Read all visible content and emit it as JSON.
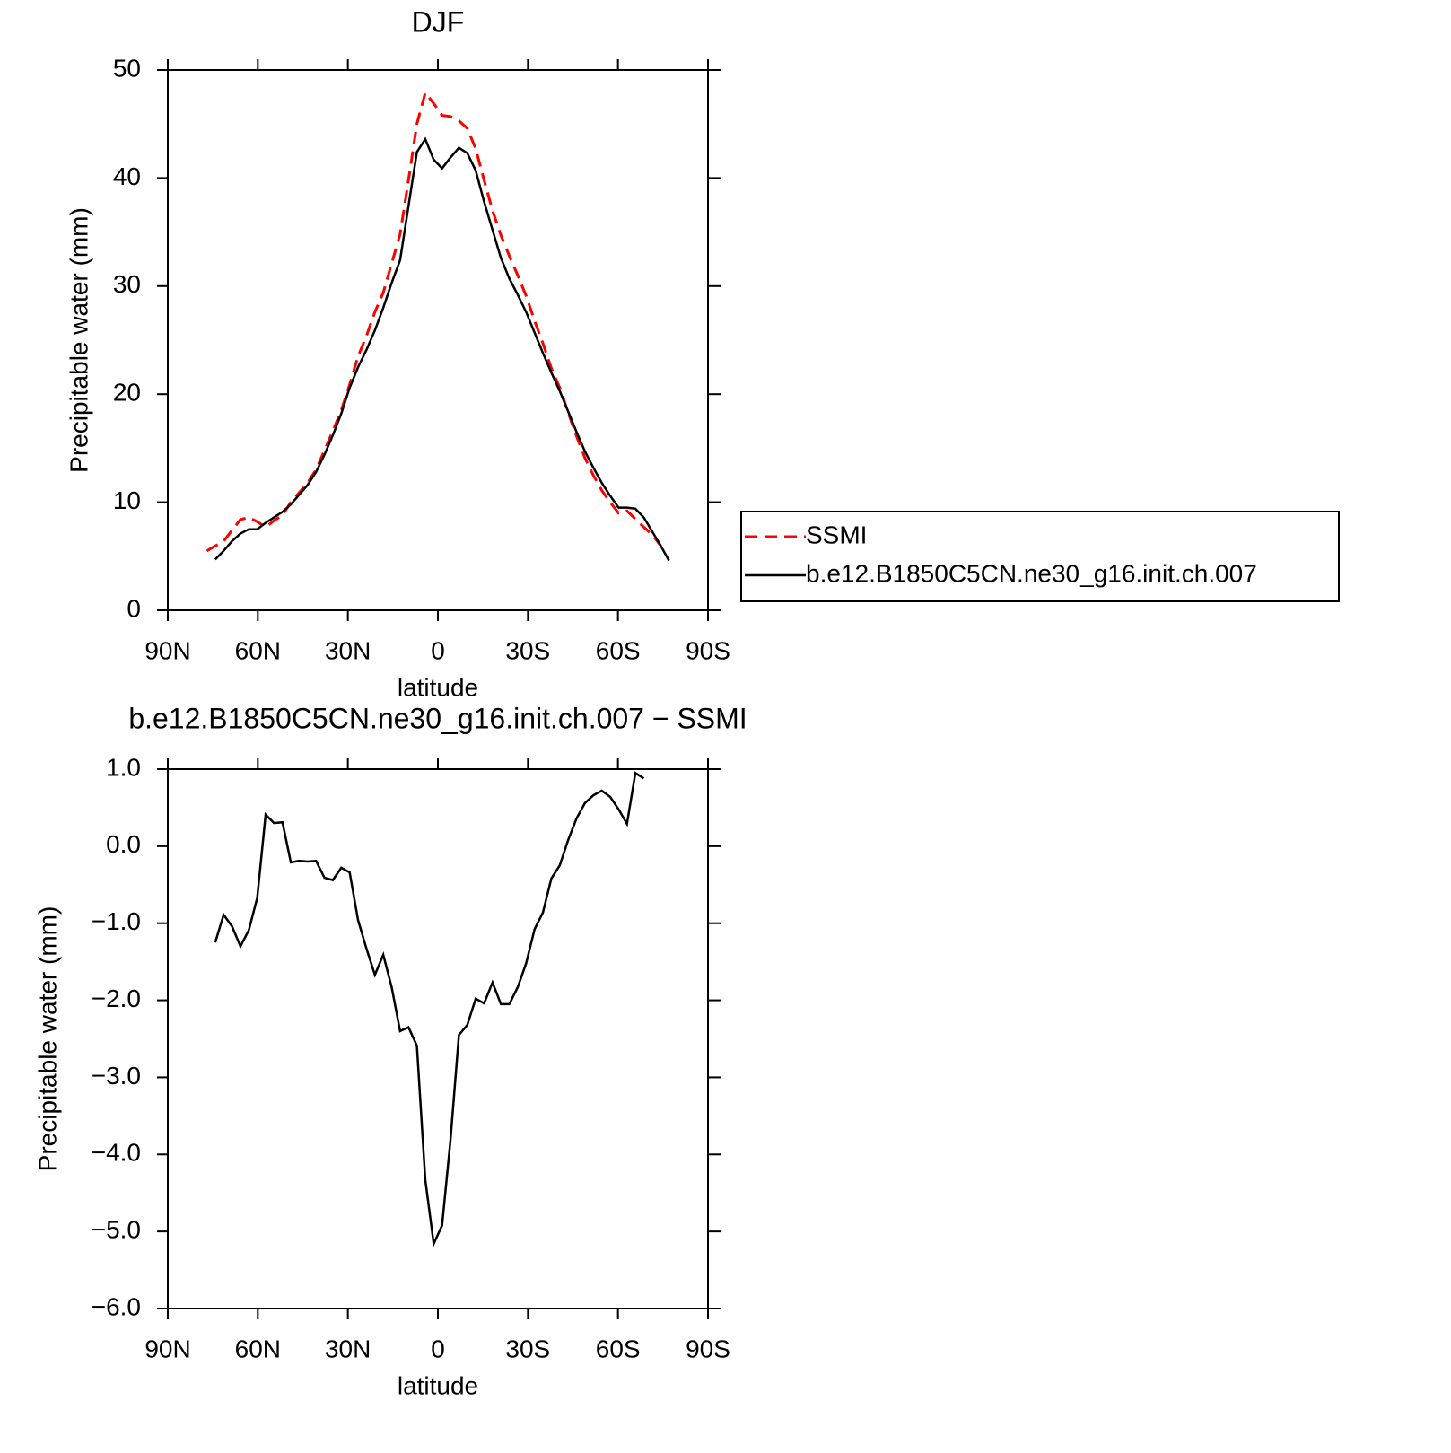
{
  "chart_data": [
    {
      "type": "line",
      "title": "DJF",
      "xlabel": "latitude",
      "ylabel": "Precipitable water (mm)",
      "x": [
        77,
        74.2,
        71.4,
        68.6,
        65.8,
        63,
        60.2,
        57.4,
        54.6,
        51.8,
        49,
        46.2,
        43.4,
        40.6,
        37.8,
        35,
        32.2,
        29.4,
        26.6,
        23.8,
        21,
        18.2,
        15.4,
        12.6,
        9.8,
        7,
        4.2,
        1.4,
        -1.4,
        -4.2,
        -7,
        -9.8,
        -12.6,
        -15.4,
        -18.2,
        -21,
        -23.8,
        -26.6,
        -29.4,
        -32.2,
        -35,
        -37.8,
        -40.6,
        -43.4,
        -46.2,
        -49,
        -51.8,
        -54.6,
        -57.4,
        -60.2,
        -63,
        -65.8,
        -68.6,
        -71.4,
        -74.2,
        -77
      ],
      "series": [
        {
          "name": "SSMI",
          "color": "#ff0000",
          "dashed": true,
          "values": [
            5.5,
            5.95,
            6.4,
            7.4,
            8.4,
            8.6,
            8.2,
            7.7,
            8.3,
            8.8,
            10.0,
            10.9,
            11.8,
            13.0,
            14.8,
            16.6,
            18.5,
            20.9,
            23.5,
            25.4,
            27.6,
            29.4,
            32.1,
            34.8,
            39.8,
            45.0,
            47.9,
            46.9,
            45.8,
            45.7,
            45.3,
            44.6,
            42.7,
            39.8,
            37.0,
            34.7,
            32.8,
            31.0,
            29.1,
            26.8,
            24.7,
            22.4,
            20.6,
            18.3,
            16.1,
            14.1,
            12.5,
            11.1,
            10.0,
            9.0,
            9.2,
            8.45,
            7.7,
            7.0,
            6.0,
            null
          ]
        },
        {
          "name": "b.e12.B1850C5CN.ne30_g16.init.ch.007",
          "color": "#000000",
          "dashed": false,
          "values": [
            null,
            4.7,
            5.5,
            6.4,
            7.1,
            7.5,
            7.5,
            8.1,
            8.6,
            9.1,
            9.8,
            10.7,
            11.6,
            12.8,
            14.4,
            16.2,
            18.2,
            20.6,
            22.5,
            24.1,
            25.9,
            28.0,
            30.3,
            32.4,
            37.4,
            42.4,
            43.6,
            41.7,
            40.9,
            41.9,
            42.8,
            42.3,
            40.7,
            37.8,
            35.2,
            32.6,
            30.7,
            29.2,
            27.6,
            25.7,
            23.8,
            22.0,
            20.3,
            18.4,
            16.5,
            14.7,
            13.2,
            11.8,
            10.6,
            9.5,
            9.5,
            9.4,
            8.6,
            7.3,
            6.0,
            4.6
          ]
        }
      ],
      "xlim": [
        90,
        -90
      ],
      "xticks": [
        {
          "value": 90,
          "label": "90N"
        },
        {
          "value": 60,
          "label": "60N"
        },
        {
          "value": 30,
          "label": "30N"
        },
        0,
        {
          "value": -30,
          "label": "30S"
        },
        {
          "value": -60,
          "label": "60S"
        },
        {
          "value": -90,
          "label": "90S"
        }
      ],
      "ylim": [
        0,
        50
      ],
      "yticks": [
        0,
        10,
        20,
        30,
        40,
        50
      ],
      "legend": "right"
    },
    {
      "type": "line",
      "title": "b.e12.B1850C5CN.ne30_g16.init.ch.007 − SSMI",
      "xlabel": "latitude",
      "ylabel": "Precipitable water (mm)",
      "x": [
        77,
        74.2,
        71.4,
        68.6,
        65.8,
        63,
        60.2,
        57.4,
        54.6,
        51.8,
        49,
        46.2,
        43.4,
        40.6,
        37.8,
        35,
        32.2,
        29.4,
        26.6,
        23.8,
        21,
        18.2,
        15.4,
        12.6,
        9.8,
        7,
        4.2,
        1.4,
        -1.4,
        -4.2,
        -7,
        -9.8,
        -12.6,
        -15.4,
        -18.2,
        -21,
        -23.8,
        -26.6,
        -29.4,
        -32.2,
        -35,
        -37.8,
        -40.6,
        -43.4,
        -46.2,
        -49,
        -51.8,
        -54.6,
        -57.4,
        -60.2,
        -63,
        -65.8,
        -68.6,
        -71.4,
        -74.2,
        -77
      ],
      "series": [
        {
          "color": "#000000",
          "dashed": false,
          "values": [
            null,
            -1.25,
            -0.89,
            -1.04,
            -1.3,
            -1.09,
            -0.67,
            0.41,
            0.3,
            0.31,
            -0.21,
            -0.19,
            -0.2,
            -0.19,
            -0.41,
            -0.44,
            -0.28,
            -0.34,
            -0.96,
            -1.33,
            -1.67,
            -1.41,
            -1.83,
            -2.4,
            -2.35,
            -2.59,
            -4.33,
            -5.16,
            -4.92,
            -3.81,
            -2.45,
            -2.32,
            -1.98,
            -2.04,
            -1.77,
            -2.05,
            -2.05,
            -1.83,
            -1.52,
            -1.08,
            -0.86,
            -0.42,
            -0.25,
            0.08,
            0.36,
            0.56,
            0.66,
            0.72,
            0.64,
            0.48,
            0.29,
            0.95,
            0.88,
            null,
            null,
            null
          ]
        }
      ],
      "xlim": [
        90,
        -90
      ],
      "xticks": [
        {
          "value": 90,
          "label": "90N"
        },
        {
          "value": 60,
          "label": "60N"
        },
        {
          "value": 30,
          "label": "30N"
        },
        0,
        {
          "value": -30,
          "label": "30S"
        },
        {
          "value": -60,
          "label": "60S"
        },
        {
          "value": -90,
          "label": "90S"
        }
      ],
      "ylim": [
        -6,
        1
      ],
      "yticks": [
        {
          "value": 1,
          "label": "1.0"
        },
        {
          "value": 0,
          "label": "0.0"
        },
        {
          "value": -1,
          "label": "−1.0"
        },
        {
          "value": -2,
          "label": "−2.0"
        },
        {
          "value": -3,
          "label": "−3.0"
        },
        {
          "value": -4,
          "label": "−4.0"
        },
        {
          "value": -5,
          "label": "−5.0"
        },
        {
          "value": -6,
          "label": "−6.0"
        }
      ]
    }
  ]
}
